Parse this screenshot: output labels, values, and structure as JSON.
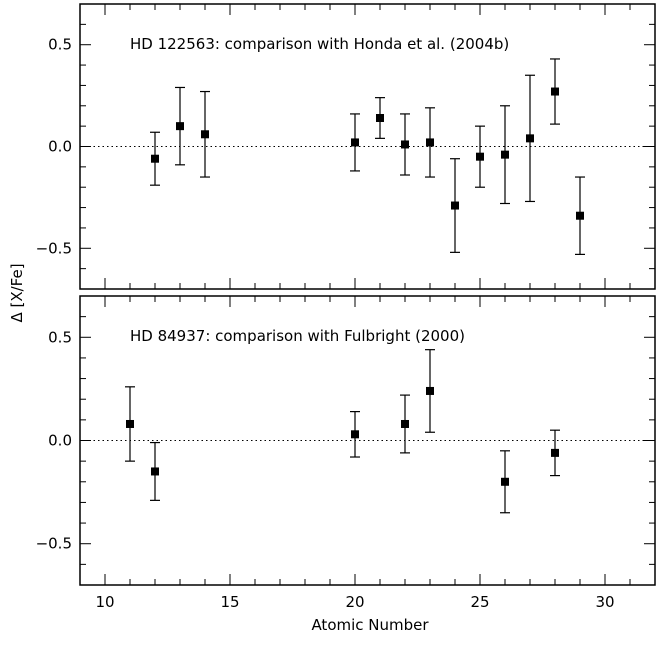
{
  "chart_data": [
    {
      "type": "scatter",
      "title": "HD 122563: comparison with Honda et al. (2004b)",
      "xlabel": "Atomic Number",
      "ylabel": "Δ [X/Fe]",
      "xlim": [
        9,
        32
      ],
      "ylim": [
        -0.7,
        0.7
      ],
      "x_ticks": [
        10,
        15,
        20,
        25,
        30
      ],
      "y_ticks": [
        -0.5,
        0.0,
        0.5
      ],
      "y_tick_labels": [
        "−0.5",
        "0.0",
        "0.5"
      ],
      "reference_line": 0.0,
      "grid": false,
      "points": [
        {
          "x": 12,
          "y": -0.06,
          "err_low": 0.13,
          "err_high": 0.13
        },
        {
          "x": 13,
          "y": 0.1,
          "err_low": 0.19,
          "err_high": 0.19
        },
        {
          "x": 14,
          "y": 0.06,
          "err_low": 0.21,
          "err_high": 0.21
        },
        {
          "x": 20,
          "y": 0.02,
          "err_low": 0.14,
          "err_high": 0.14
        },
        {
          "x": 21,
          "y": 0.14,
          "err_low": 0.1,
          "err_high": 0.1
        },
        {
          "x": 22,
          "y": 0.01,
          "err_low": 0.15,
          "err_high": 0.15
        },
        {
          "x": 23,
          "y": 0.02,
          "err_low": 0.17,
          "err_high": 0.17
        },
        {
          "x": 24,
          "y": -0.29,
          "err_low": 0.23,
          "err_high": 0.23
        },
        {
          "x": 25,
          "y": -0.05,
          "err_low": 0.15,
          "err_high": 0.15
        },
        {
          "x": 26,
          "y": -0.04,
          "err_low": 0.24,
          "err_high": 0.24
        },
        {
          "x": 27,
          "y": 0.04,
          "err_low": 0.31,
          "err_high": 0.31
        },
        {
          "x": 28,
          "y": 0.27,
          "err_low": 0.16,
          "err_high": 0.16
        },
        {
          "x": 29,
          "y": -0.34,
          "err_low": 0.19,
          "err_high": 0.19
        }
      ]
    },
    {
      "type": "scatter",
      "title": "HD 84937: comparison with Fulbright (2000)",
      "xlabel": "Atomic Number",
      "ylabel": "Δ [X/Fe]",
      "xlim": [
        9,
        32
      ],
      "ylim": [
        -0.7,
        0.7
      ],
      "x_ticks": [
        10,
        15,
        20,
        25,
        30
      ],
      "y_ticks": [
        -0.5,
        0.0,
        0.5
      ],
      "y_tick_labels": [
        "−0.5",
        "0.0",
        "0.5"
      ],
      "reference_line": 0.0,
      "grid": false,
      "points": [
        {
          "x": 11,
          "y": 0.08,
          "err_low": 0.18,
          "err_high": 0.18
        },
        {
          "x": 12,
          "y": -0.15,
          "err_low": 0.14,
          "err_high": 0.14
        },
        {
          "x": 20,
          "y": 0.03,
          "err_low": 0.11,
          "err_high": 0.11
        },
        {
          "x": 22,
          "y": 0.08,
          "err_low": 0.14,
          "err_high": 0.14
        },
        {
          "x": 23,
          "y": 0.24,
          "err_low": 0.2,
          "err_high": 0.2
        },
        {
          "x": 26,
          "y": -0.2,
          "err_low": 0.15,
          "err_high": 0.15
        },
        {
          "x": 28,
          "y": -0.06,
          "err_low": 0.11,
          "err_high": 0.11
        }
      ]
    }
  ]
}
